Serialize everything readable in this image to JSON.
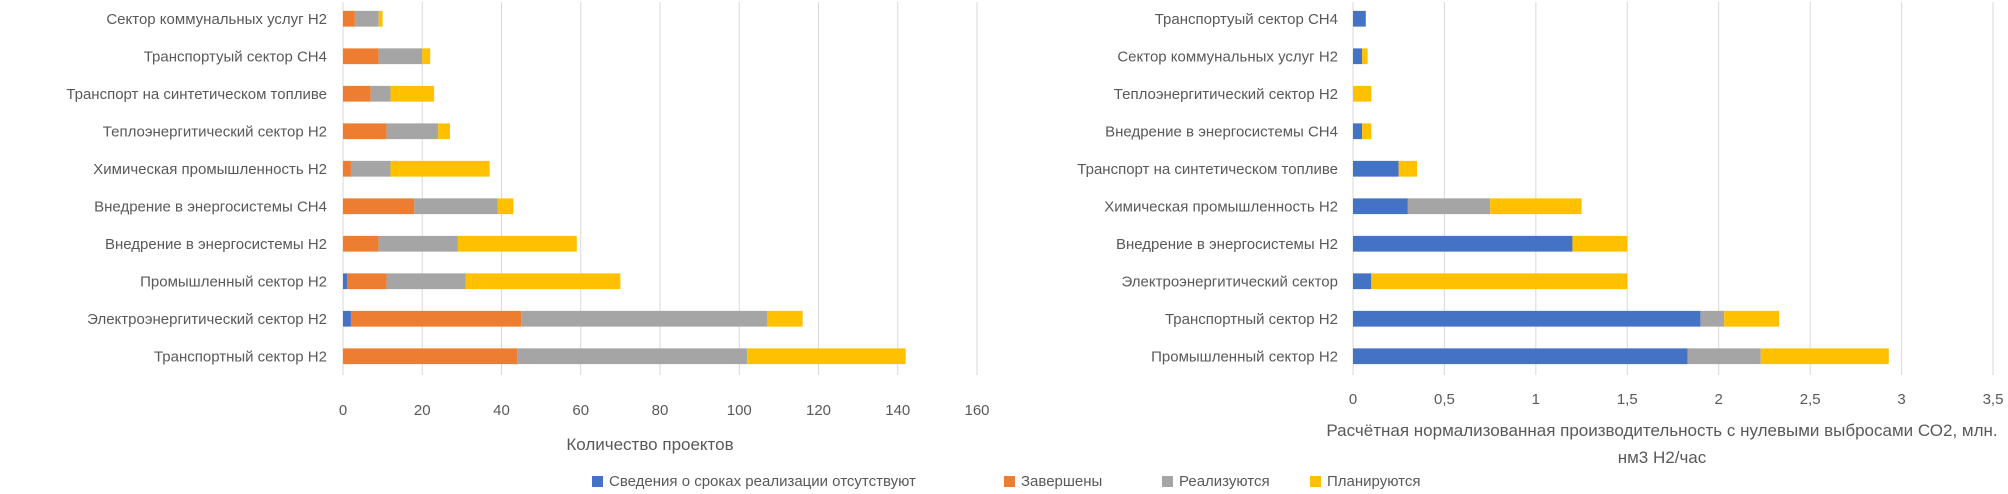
{
  "legend": {
    "position": "bottom",
    "items": [
      {
        "name": "Сведения о сроках реализации отсутствуют",
        "color": "#4472C4"
      },
      {
        "name": "Завершены",
        "color": "#ED7D31"
      },
      {
        "name": "Реализуются",
        "color": "#A5A5A5"
      },
      {
        "name": "Планируются",
        "color": "#FFC000"
      }
    ]
  },
  "chart_data": [
    {
      "type": "bar",
      "orientation": "horizontal",
      "stacked": true,
      "title": "",
      "xlabel": "Количество проектов",
      "ylabel": "",
      "xlim": [
        0,
        160
      ],
      "xticks": [
        "0",
        "20",
        "40",
        "60",
        "80",
        "100",
        "120",
        "140",
        "160"
      ],
      "grid": true,
      "categories": [
        "Сектор коммунальных услуг Н2",
        "Транспортуый сектор СН4",
        "Транспорт на синтетическом  топливе",
        "Теплоэнергитический сектор Н2",
        "Химическая промышленность Н2",
        "Внедрение в энергосистемы СН4",
        "Внедрение в энергосистемы Н2",
        "Промышленный сектор Н2",
        "Электроэнергитический сектор Н2",
        "Транспортный сектор Н2"
      ],
      "series": [
        {
          "name": "Сведения о сроках реализации отсутствуют",
          "values": [
            0,
            0,
            0,
            0,
            0,
            0,
            0,
            1,
            2,
            0
          ]
        },
        {
          "name": "Завершены",
          "values": [
            3,
            9,
            7,
            11,
            2,
            18,
            9,
            10,
            43,
            44
          ]
        },
        {
          "name": "Реализуются",
          "values": [
            6,
            11,
            5,
            13,
            10,
            21,
            20,
            20,
            62,
            58
          ]
        },
        {
          "name": "Планируются",
          "values": [
            1,
            2,
            11,
            3,
            25,
            4,
            30,
            39,
            9,
            40
          ]
        }
      ]
    },
    {
      "type": "bar",
      "orientation": "horizontal",
      "stacked": true,
      "title": "",
      "xlabel": "Расчётная нормализованная производительность с нулевыми выбросами СО2, млн. нм3 Н2/час",
      "ylabel": "",
      "xlim": [
        0,
        3.5
      ],
      "xticks": [
        "0",
        "0,5",
        "1",
        "1,5",
        "2",
        "2,5",
        "3",
        "3,5"
      ],
      "grid": true,
      "categories": [
        "Транспортуый сектор СН4",
        "Сектор коммунальных услуг Н2",
        "Теплоэнергитический сектор Н2",
        "Внедрение в энергосистемы СН4",
        "Транспорт на синтетическом  топливе",
        "Химическая промышленность Н2",
        "Внедрение в энергосистемы Н2",
        "Электроэнергитический сектор",
        "Транспортный сектор Н2",
        "Промышленный сектор Н2"
      ],
      "series": [
        {
          "name": "Сведения о сроках реализации отсутствуют",
          "values": [
            0.07,
            0.05,
            0,
            0.05,
            0.25,
            0.3,
            1.2,
            0.1,
            1.9,
            1.83
          ]
        },
        {
          "name": "Завершены",
          "values": [
            0,
            0,
            0,
            0,
            0,
            0,
            0,
            0,
            0,
            0
          ]
        },
        {
          "name": "Реализуются",
          "values": [
            0,
            0,
            0,
            0,
            0,
            0.45,
            0,
            0,
            0.13,
            0.4
          ]
        },
        {
          "name": "Планируются",
          "values": [
            0,
            0.03,
            0.1,
            0.05,
            0.1,
            0.5,
            0.3,
            1.4,
            0.3,
            0.7
          ]
        }
      ]
    }
  ]
}
